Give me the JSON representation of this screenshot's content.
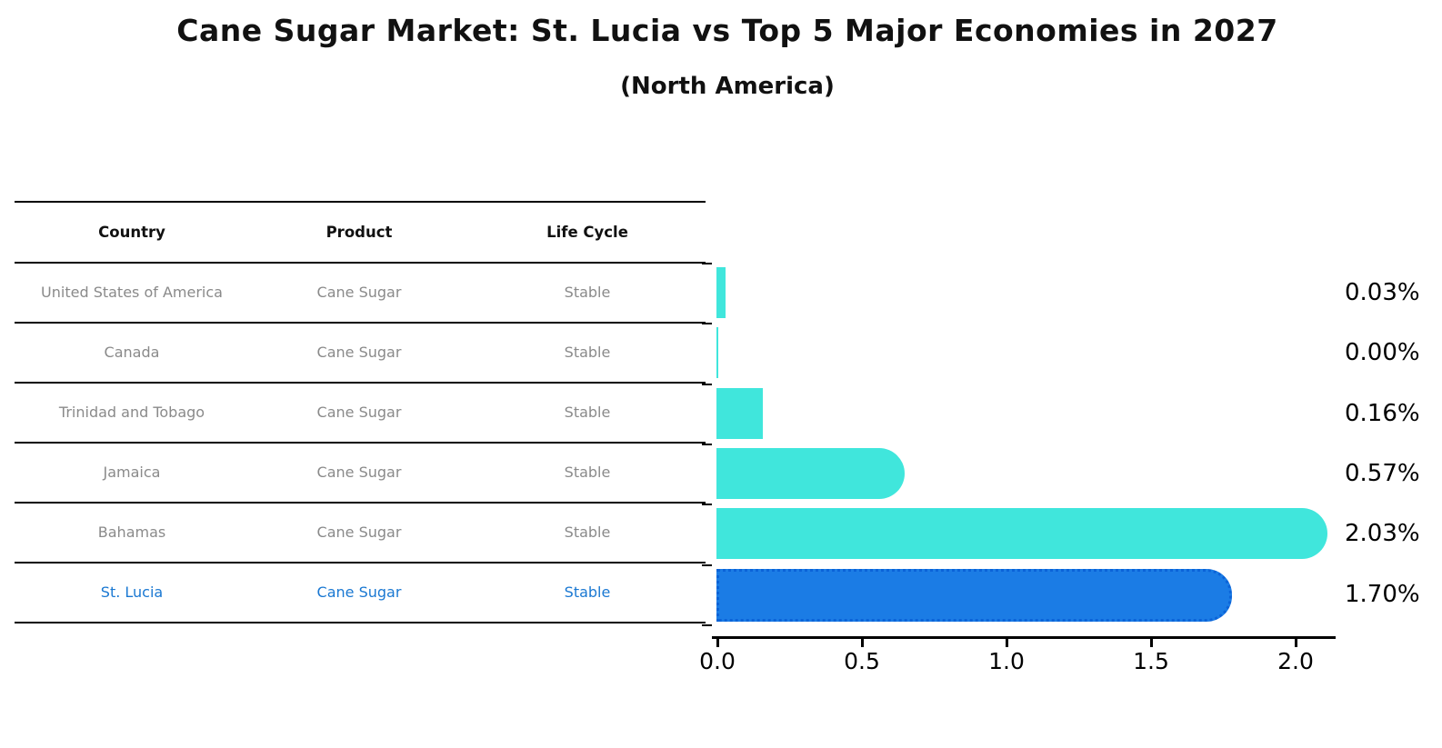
{
  "title": "Cane Sugar Market: St. Lucia vs Top 5 Major Economies in 2027",
  "subtitle": "(North America)",
  "table": {
    "headers": [
      "Country",
      "Product",
      "Life Cycle"
    ],
    "rows": [
      {
        "country": "United States of America",
        "product": "Cane Sugar",
        "life_cycle": "Stable",
        "highlight": false
      },
      {
        "country": "Canada",
        "product": "Cane Sugar",
        "life_cycle": "Stable",
        "highlight": false
      },
      {
        "country": "Trinidad and Tobago",
        "product": "Cane Sugar",
        "life_cycle": "Stable",
        "highlight": false
      },
      {
        "country": "Jamaica",
        "product": "Cane Sugar",
        "life_cycle": "Stable",
        "highlight": false
      },
      {
        "country": "Bahamas",
        "product": "Cane Sugar",
        "life_cycle": "Stable",
        "highlight": false
      },
      {
        "country": "St. Lucia",
        "product": "Cane Sugar",
        "life_cycle": "Stable",
        "highlight": true
      }
    ]
  },
  "chart_data": {
    "type": "bar",
    "orientation": "horizontal",
    "title": "Cane Sugar Market: St. Lucia vs Top 5 Major Economies in 2027",
    "subtitle": "(North America)",
    "categories": [
      "United States of America",
      "Canada",
      "Trinidad and Tobago",
      "Jamaica",
      "Bahamas",
      "St. Lucia"
    ],
    "values": [
      0.03,
      0.0,
      0.16,
      0.57,
      2.03,
      1.7
    ],
    "value_labels": [
      "0.03%",
      "0.00%",
      "0.16%",
      "0.57%",
      "2.03%",
      "1.70%"
    ],
    "highlight_index": 5,
    "xlabel": "",
    "ylabel": "",
    "xlim": [
      0.0,
      2.15
    ],
    "x_ticks": [
      0.0,
      0.5,
      1.0,
      1.5,
      2.0
    ],
    "x_tick_labels": [
      "0.0",
      "0.5",
      "1.0",
      "1.5",
      "2.0"
    ],
    "grid": false,
    "legend": false
  },
  "colors": {
    "bar_cyan": "#40E6DC",
    "bar_blue": "#1B7CE5",
    "bar_blue_border": "#0B63D8",
    "highlight_text_blue": "#1a78d2",
    "table_text_gray": "#8a8a8a",
    "axis_black": "#000000"
  }
}
